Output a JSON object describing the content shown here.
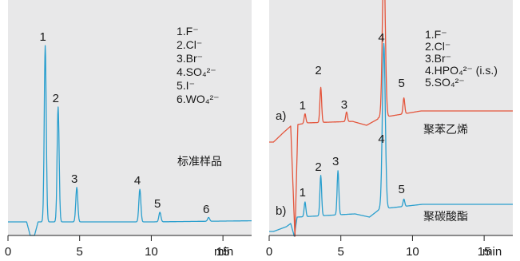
{
  "chart_data": [
    {
      "type": "line",
      "xlabel": "min",
      "xlim": [
        0,
        17
      ],
      "xticks": [
        0,
        5,
        10,
        15
      ],
      "legend": [
        "1.F⁻",
        "2.Cl⁻",
        "3.Br⁻",
        "4.SO₄²⁻",
        "5.I⁻",
        "6.WO₄²⁻"
      ],
      "note": "标准样品",
      "series": [
        {
          "color": "#2a9fce",
          "peaks": [
            {
              "label": "1",
              "x": 2.6,
              "height": 0.92
            },
            {
              "label": "2",
              "x": 3.5,
              "height": 0.6
            },
            {
              "label": "3",
              "x": 4.8,
              "height": 0.18
            },
            {
              "label": "4",
              "x": 9.2,
              "height": 0.17
            },
            {
              "label": "5",
              "x": 10.6,
              "height": 0.05
            },
            {
              "label": "6",
              "x": 14.0,
              "height": 0.02
            }
          ]
        }
      ]
    },
    {
      "type": "line",
      "xlabel": "min",
      "xlim": [
        0,
        17
      ],
      "xticks": [
        0,
        5,
        10,
        15
      ],
      "legend": [
        "1.F⁻",
        "2.Cl⁻",
        "3.Br⁻",
        "4.HPO₄²⁻ (i.s.)",
        "5.SO₄²⁻"
      ],
      "series": [
        {
          "name": "聚苯乙烯",
          "tag": "a)",
          "color": "#e4553c",
          "peaks": [
            {
              "label": "1",
              "x": 2.5,
              "height": 0.06
            },
            {
              "label": "2",
              "x": 3.6,
              "height": 0.22
            },
            {
              "label": "3",
              "x": 5.4,
              "height": 0.06
            },
            {
              "label": "4",
              "x": 8.0,
              "height": 1.0
            },
            {
              "label": "5",
              "x": 9.4,
              "height": 0.1
            }
          ]
        },
        {
          "name": "聚碳酸酯",
          "tag": "b)",
          "color": "#2a9fce",
          "peaks": [
            {
              "label": "1",
              "x": 2.5,
              "height": 0.08
            },
            {
              "label": "2",
              "x": 3.6,
              "height": 0.22
            },
            {
              "label": "3",
              "x": 4.8,
              "height": 0.24
            },
            {
              "label": "4",
              "x": 8.0,
              "height": 0.9
            },
            {
              "label": "5",
              "x": 9.4,
              "height": 0.04
            }
          ]
        }
      ]
    }
  ]
}
